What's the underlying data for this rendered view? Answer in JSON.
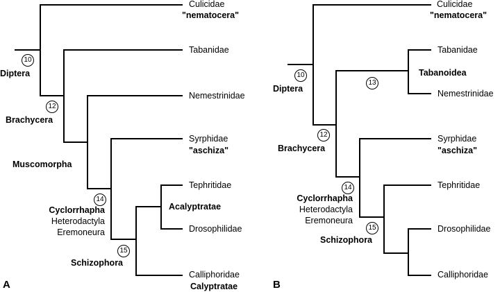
{
  "panel_a": {
    "label": "A",
    "taxa": {
      "culicidae": "Culicidae",
      "nematocera": "\"nematocera\"",
      "tabanidae": "Tabanidae",
      "nemestrinidae": "Nemestrinidae",
      "syrphidae": "Syrphidae",
      "aschiza": "\"aschiza\"",
      "tephritidae": "Tephritidae",
      "acalyptratae": "Acalyptratae",
      "drosophilidae": "Drosophilidae",
      "calliphoridae": "Calliphoridae",
      "calyptratae": "Calyptratae"
    },
    "groups": {
      "diptera": "Diptera",
      "brachycera": "Brachycera",
      "muscomorpha": "Muscomorpha",
      "cyclorrhapha": "Cyclorrhapha",
      "heterodactyla": "Heterodactyla",
      "eremoneura": "Eremoneura",
      "schizophora": "Schizophora"
    },
    "nodes": {
      "n10": "10",
      "n12": "12",
      "n14": "14",
      "n15": "15"
    }
  },
  "panel_b": {
    "label": "B",
    "taxa": {
      "culicidae": "Culicidae",
      "nematocera": "\"nematocera\"",
      "tabanidae": "Tabanidae",
      "nemestrinidae": "Nemestrinidae",
      "syrphidae": "Syrphidae",
      "aschiza": "\"aschiza\"",
      "tephritidae": "Tephritidae",
      "drosophilidae": "Drosophilidae",
      "calliphoridae": "Calliphoridae"
    },
    "groups": {
      "diptera": "Diptera",
      "tabanoidea": "Tabanoidea",
      "brachycera": "Brachycera",
      "cyclorrhapha": "Cyclorrhapha",
      "heterodactyla": "Heterodactyla",
      "eremoneura": "Eremoneura",
      "schizophora": "Schizophora"
    },
    "nodes": {
      "n10": "10",
      "n12": "12",
      "n13": "13",
      "n14": "14",
      "n15": "15"
    }
  }
}
